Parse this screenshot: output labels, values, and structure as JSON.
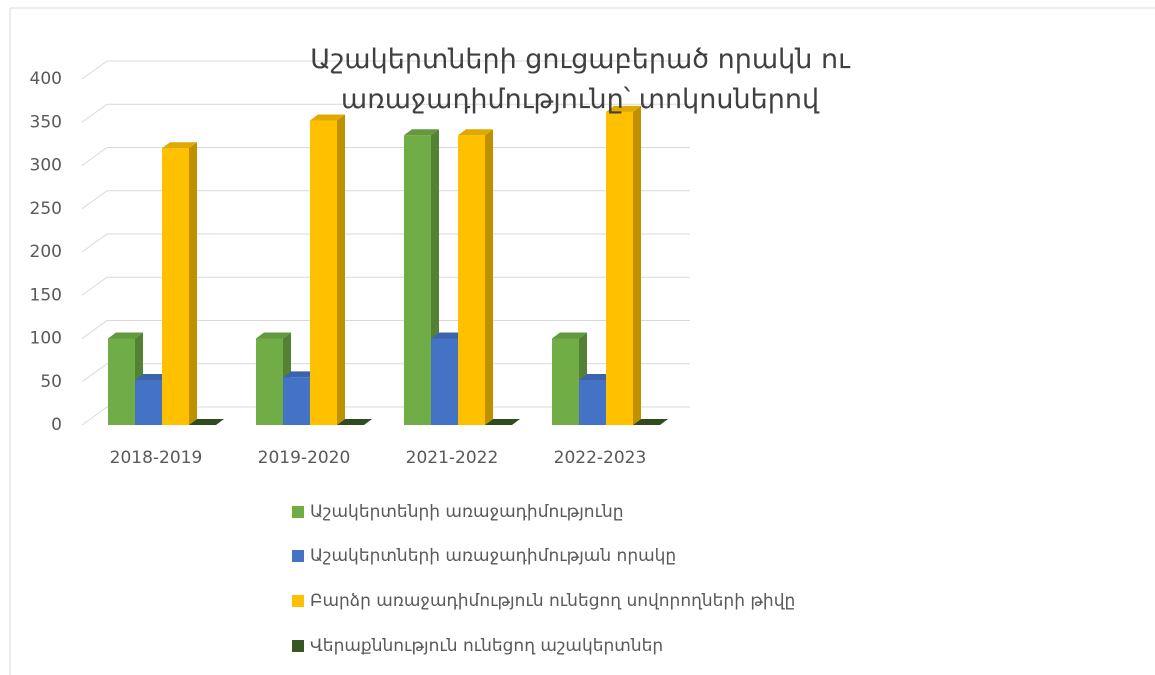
{
  "chart_data": {
    "type": "bar3d",
    "title": "Աշակերտների ցուցաբերած որակն ու առաջադիմությունը՝ տոկոսներով",
    "categories": [
      "2018-2019",
      "2019-2020",
      "2021-2022",
      "2022-2023"
    ],
    "series": [
      {
        "name": "Աշակերտենրի առաջադիմությունը",
        "color": "#70ad47",
        "values": [
          100,
          100,
          335,
          100
        ]
      },
      {
        "name": "Աշակերտների առաջադիմության որակը",
        "color": "#4472c4",
        "values": [
          52,
          55,
          100,
          52
        ]
      },
      {
        "name": "Բարձր առաջադիմություն ունեցող սովորողների թիվը",
        "color": "#ffc000",
        "values": [
          320,
          352,
          335,
          362
        ]
      },
      {
        "name": "Վերաքննություն ունեցող աշակերտներ",
        "color": "#375623",
        "values": [
          0,
          0,
          0,
          0
        ]
      }
    ],
    "ylim": [
      0,
      400
    ],
    "yticks": [
      0,
      50,
      100,
      150,
      200,
      250,
      300,
      350,
      400
    ],
    "grid": true,
    "legend": "bottom"
  }
}
